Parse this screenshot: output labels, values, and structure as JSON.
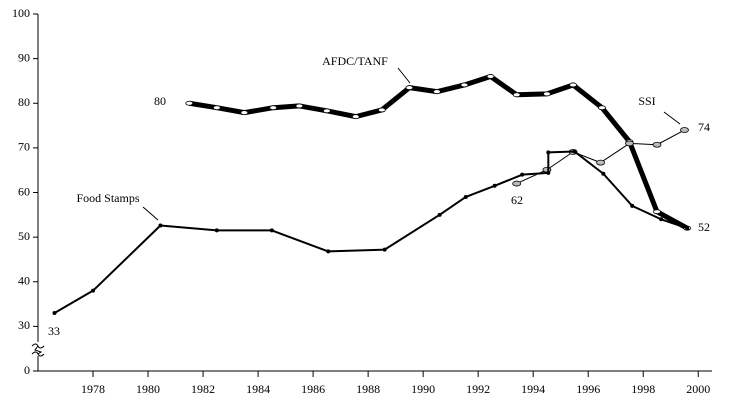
{
  "chart_data": {
    "type": "line",
    "xlim": [
      1976,
      2000.5
    ],
    "xticks": [
      1978,
      1980,
      1982,
      1984,
      1986,
      1988,
      1990,
      1992,
      1994,
      1996,
      1998,
      2000
    ],
    "ylim": [
      20,
      100
    ],
    "yticks": [
      {
        "value": 20,
        "label": "0"
      },
      30,
      40,
      50,
      60,
      70,
      80,
      90,
      100
    ],
    "y_axis_break": true,
    "series": [
      {
        "name": "AFDC/TANF",
        "color": "#000000",
        "x": [
          1981.5,
          1982.5,
          1983.5,
          1984.55,
          1985.5,
          1986.5,
          1987.55,
          1988.5,
          1989.5,
          1990.5,
          1991.5,
          1992.45,
          1993.4,
          1994.5,
          1995.45,
          1996.5,
          1997.5,
          1998.5,
          1999.6
        ],
        "values": [
          80,
          79,
          77.9,
          79,
          79.4,
          78.3,
          77,
          78.5,
          83.5,
          82.6,
          84.1,
          86,
          81.9,
          82.1,
          84.1,
          79,
          71.4,
          55.7,
          52
        ]
      },
      {
        "name": "SSI",
        "color": "#000000",
        "x": [
          1993.4,
          1994.5,
          1995.45,
          1996.45,
          1997.5,
          1998.5,
          1999.5
        ],
        "values": [
          62,
          65.1,
          69.1,
          66.7,
          71,
          70.7,
          74
        ]
      },
      {
        "name": "Food Stamps",
        "color": "#000000",
        "x": [
          1976.6,
          1978.0,
          1980.45,
          1982.5,
          1984.5,
          1986.55,
          1988.6,
          1990.6,
          1991.55,
          1992.6,
          1993.6,
          1994.55,
          1994.55,
          1995.5,
          1996.55,
          1997.6,
          1998.65,
          1999.6
        ],
        "values": [
          33,
          38,
          52.6,
          51.5,
          51.5,
          46.8,
          47.2,
          55,
          59,
          61.5,
          64,
          64.4,
          69,
          69.2,
          64.2,
          57,
          54,
          52
        ]
      }
    ]
  }
}
